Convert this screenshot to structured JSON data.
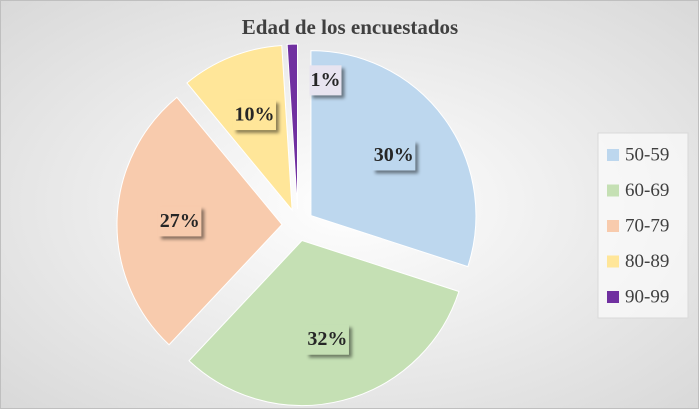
{
  "chart_data": {
    "type": "pie",
    "title": "Edad de los encuestados",
    "categories": [
      "50-59",
      "60-69",
      "70-79",
      "80-89",
      "90-99"
    ],
    "values": [
      30,
      32,
      27,
      10,
      1
    ],
    "value_labels": [
      "30%",
      "32%",
      "27%",
      "10%",
      "1%"
    ],
    "colors": [
      "#bdd7ee",
      "#c5e0b4",
      "#f8cbad",
      "#ffe699",
      "#7030a0"
    ],
    "legend": "right"
  }
}
